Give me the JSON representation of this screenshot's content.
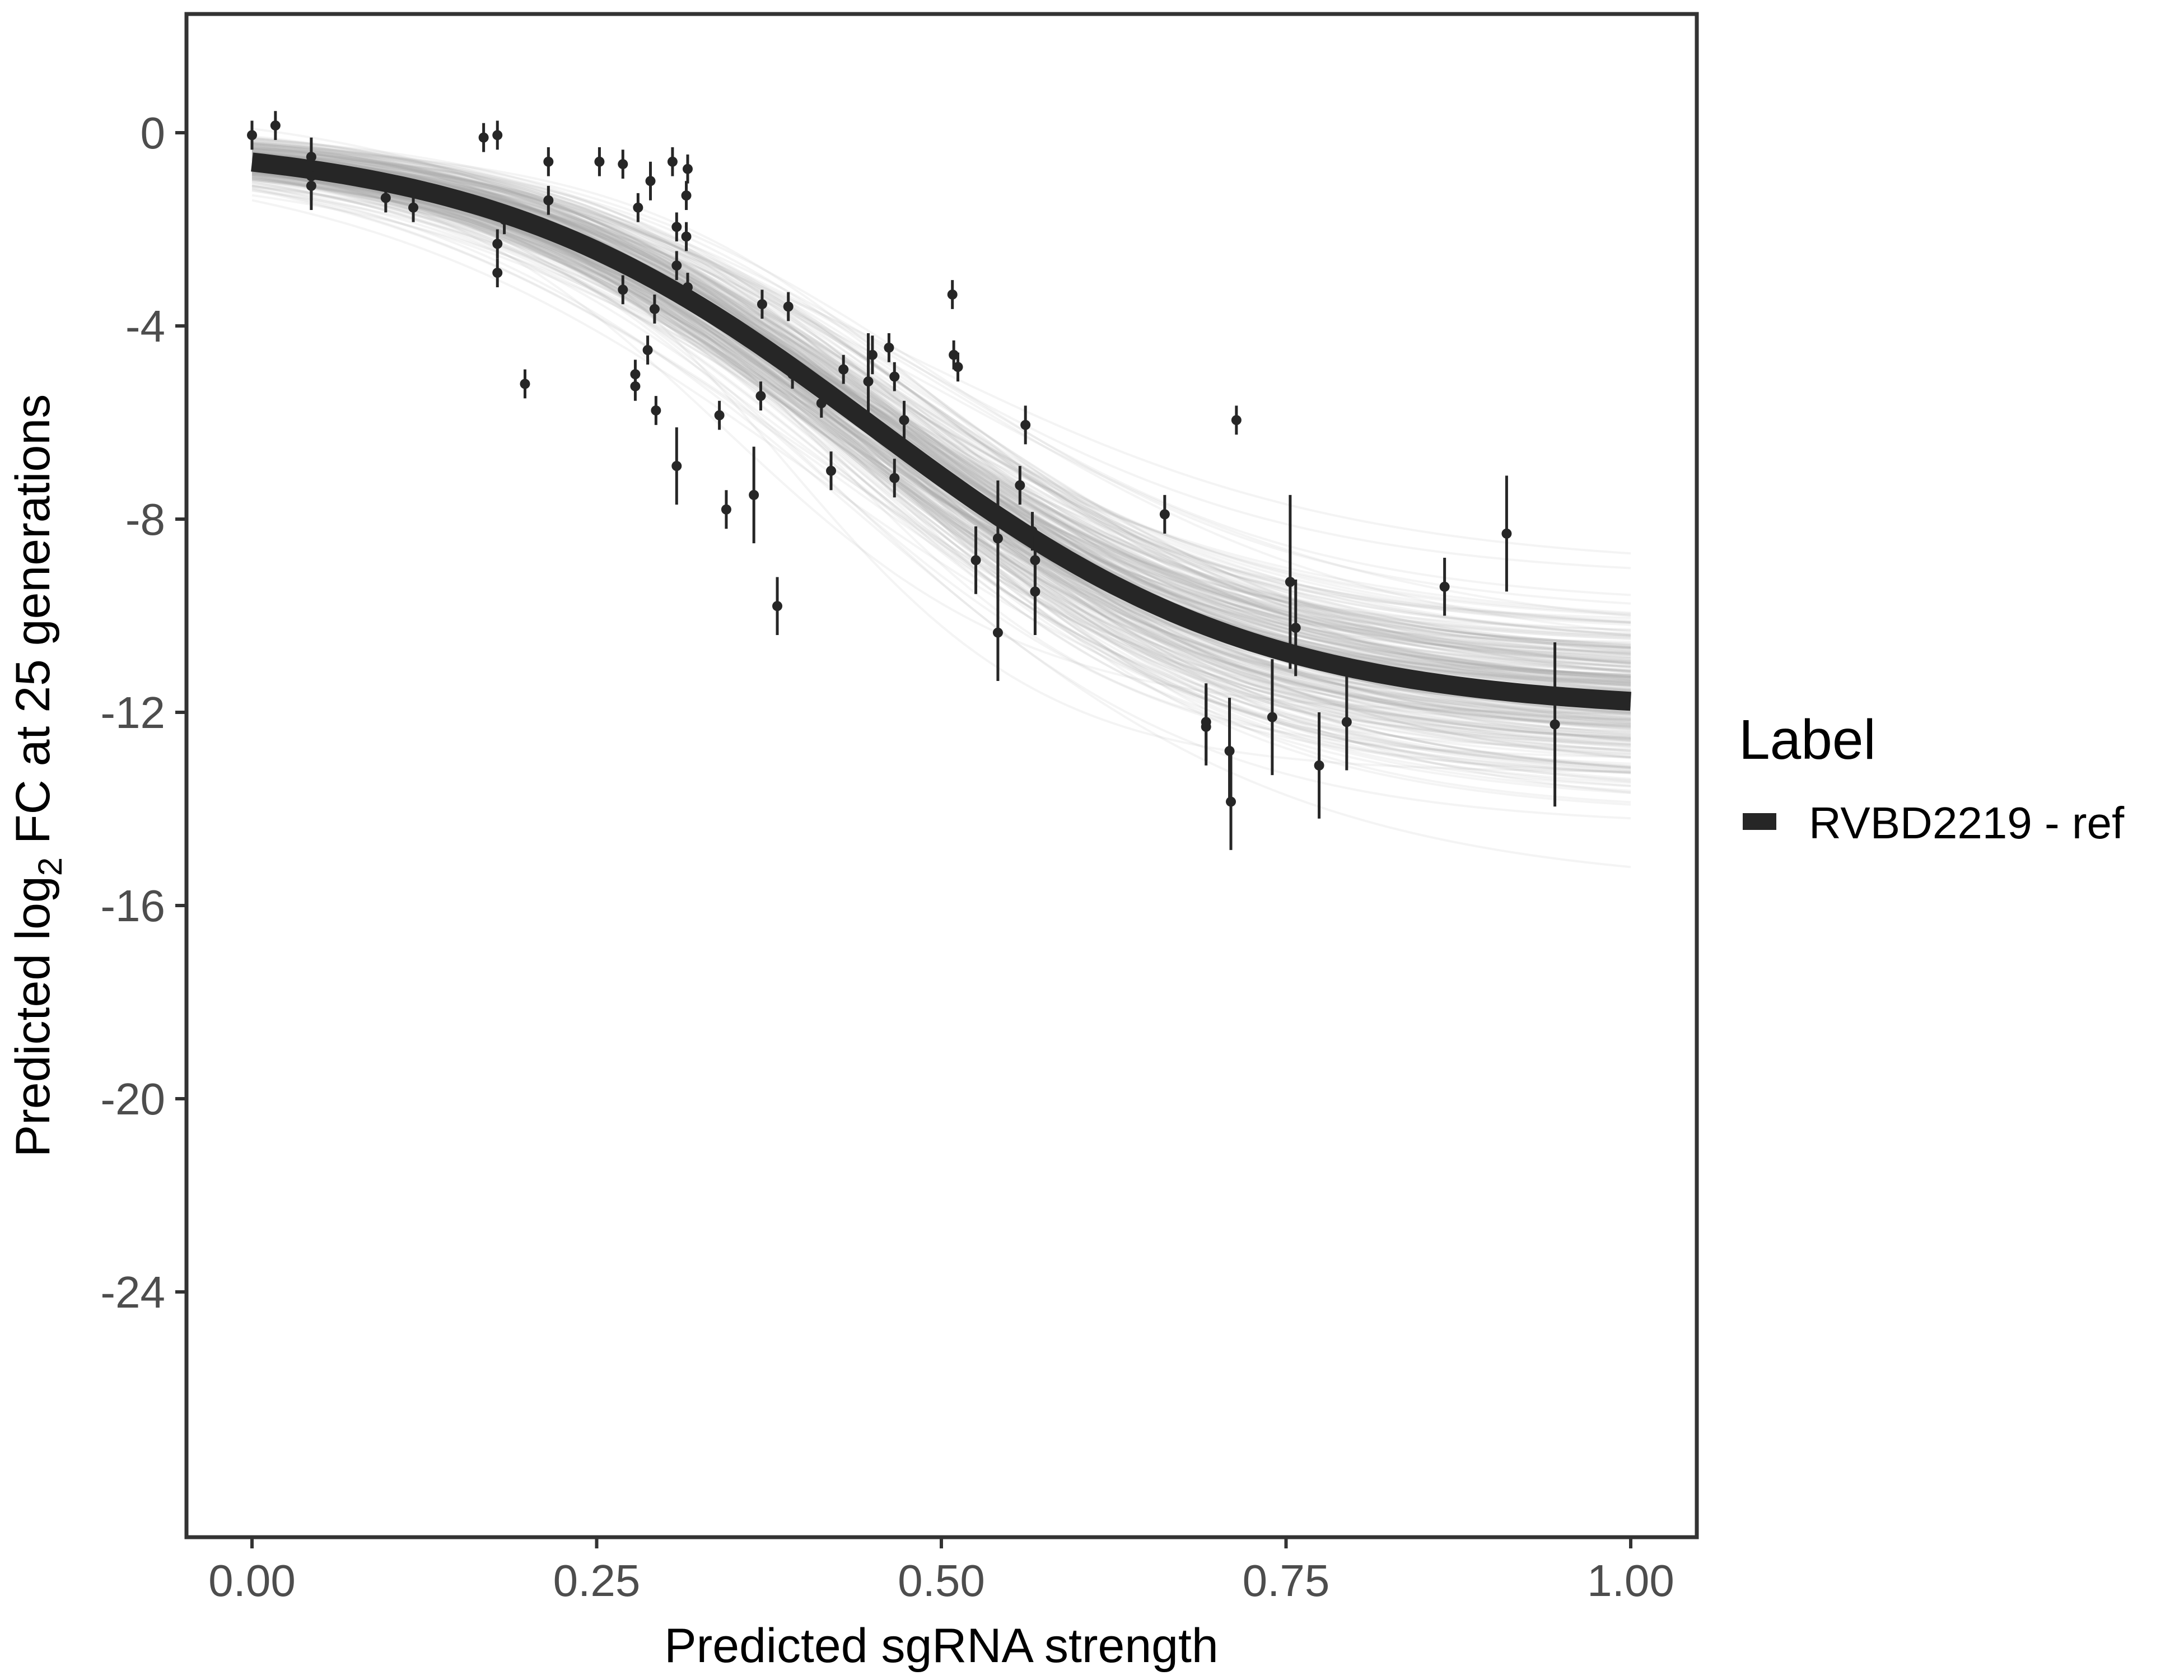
{
  "chart_data": {
    "type": "scatter",
    "title": "",
    "xlabel": "Predicted sgRNA strength",
    "ylabel_parts": {
      "pre": "Predicted  log",
      "sub": "2",
      "post": " FC at 25 generations"
    },
    "xlim": [
      -0.05,
      1.05
    ],
    "ylim": [
      -29.1,
      2.5
    ],
    "x_ticks": [
      {
        "value": 0,
        "label": "0.00"
      },
      {
        "value": 0.25,
        "label": "0.25"
      },
      {
        "value": 0.5,
        "label": "0.50"
      },
      {
        "value": 0.75,
        "label": "0.75"
      },
      {
        "value": 1,
        "label": "1.00"
      }
    ],
    "y_ticks": [
      {
        "value": 0,
        "label": "0"
      },
      {
        "value": -4,
        "label": "-4"
      },
      {
        "value": -8,
        "label": "-8"
      },
      {
        "value": -12,
        "label": "-12"
      },
      {
        "value": -16,
        "label": "-16"
      },
      {
        "value": -20,
        "label": "-20"
      },
      {
        "value": -24,
        "label": "-24"
      }
    ],
    "grid": false,
    "legend": {
      "title": "Label",
      "placement": "right",
      "items": [
        {
          "label": "RVBD2219 - ref",
          "color": "#262626"
        }
      ]
    },
    "fit_curve": {
      "name": "RVBD2219 - ref",
      "model": "logistic",
      "upper": -0.15,
      "lower": -12.0,
      "midpoint": 0.45,
      "scale": 0.14,
      "color": "#262626",
      "band_color": "#a6a6a6"
    },
    "points": [
      {
        "x": 0.0,
        "y": -0.05,
        "err": 0.3
      },
      {
        "x": 0.017,
        "y": 0.15,
        "err": 0.3
      },
      {
        "x": 0.043,
        "y": -0.5,
        "err": 0.4
      },
      {
        "x": 0.043,
        "y": -0.9,
        "err": 0.5
      },
      {
        "x": 0.043,
        "y": -1.1,
        "err": 0.5
      },
      {
        "x": 0.097,
        "y": -1.35,
        "err": 0.3
      },
      {
        "x": 0.117,
        "y": -1.55,
        "err": 0.3
      },
      {
        "x": 0.168,
        "y": -0.1,
        "err": 0.3
      },
      {
        "x": 0.178,
        "y": -0.05,
        "err": 0.3
      },
      {
        "x": 0.178,
        "y": -2.3,
        "err": 0.3
      },
      {
        "x": 0.178,
        "y": -2.9,
        "err": 0.3
      },
      {
        "x": 0.183,
        "y": -1.8,
        "err": 0.3
      },
      {
        "x": 0.198,
        "y": -5.2,
        "err": 0.3
      },
      {
        "x": 0.215,
        "y": -0.6,
        "err": 0.3
      },
      {
        "x": 0.215,
        "y": -1.4,
        "err": 0.3
      },
      {
        "x": 0.252,
        "y": -0.6,
        "err": 0.3
      },
      {
        "x": 0.269,
        "y": -0.65,
        "err": 0.3
      },
      {
        "x": 0.269,
        "y": -3.25,
        "err": 0.3
      },
      {
        "x": 0.278,
        "y": -5.0,
        "err": 0.3
      },
      {
        "x": 0.278,
        "y": -5.25,
        "err": 0.3
      },
      {
        "x": 0.28,
        "y": -1.55,
        "err": 0.3
      },
      {
        "x": 0.289,
        "y": -1.0,
        "err": 0.4
      },
      {
        "x": 0.292,
        "y": -3.65,
        "err": 0.3
      },
      {
        "x": 0.287,
        "y": -4.5,
        "err": 0.3
      },
      {
        "x": 0.293,
        "y": -5.75,
        "err": 0.3
      },
      {
        "x": 0.305,
        "y": -0.6,
        "err": 0.3
      },
      {
        "x": 0.308,
        "y": -1.95,
        "err": 0.3
      },
      {
        "x": 0.308,
        "y": -2.75,
        "err": 0.3
      },
      {
        "x": 0.308,
        "y": -6.9,
        "err": 0.8
      },
      {
        "x": 0.315,
        "y": -1.3,
        "err": 0.3
      },
      {
        "x": 0.315,
        "y": -2.15,
        "err": 0.3
      },
      {
        "x": 0.316,
        "y": -0.75,
        "err": 0.3
      },
      {
        "x": 0.316,
        "y": -3.2,
        "err": 0.3
      },
      {
        "x": 0.339,
        "y": -5.85,
        "err": 0.3
      },
      {
        "x": 0.344,
        "y": -7.8,
        "err": 0.4
      },
      {
        "x": 0.364,
        "y": -7.5,
        "err": 1.0
      },
      {
        "x": 0.369,
        "y": -5.45,
        "err": 0.3
      },
      {
        "x": 0.37,
        "y": -3.55,
        "err": 0.3
      },
      {
        "x": 0.381,
        "y": -9.8,
        "err": 0.6
      },
      {
        "x": 0.389,
        "y": -3.6,
        "err": 0.3
      },
      {
        "x": 0.392,
        "y": -5.0,
        "err": 0.3
      },
      {
        "x": 0.413,
        "y": -5.6,
        "err": 0.3
      },
      {
        "x": 0.42,
        "y": -7.0,
        "err": 0.4
      },
      {
        "x": 0.429,
        "y": -4.9,
        "err": 0.3
      },
      {
        "x": 0.447,
        "y": -5.15,
        "err": 1.0
      },
      {
        "x": 0.45,
        "y": -4.6,
        "err": 0.4
      },
      {
        "x": 0.462,
        "y": -4.45,
        "err": 0.3
      },
      {
        "x": 0.466,
        "y": -5.05,
        "err": 0.3
      },
      {
        "x": 0.466,
        "y": -7.15,
        "err": 0.4
      },
      {
        "x": 0.473,
        "y": -5.95,
        "err": 0.4
      },
      {
        "x": 0.508,
        "y": -3.35,
        "err": 0.3
      },
      {
        "x": 0.509,
        "y": -4.6,
        "err": 0.3
      },
      {
        "x": 0.512,
        "y": -4.85,
        "err": 0.3
      },
      {
        "x": 0.525,
        "y": -8.85,
        "err": 0.7
      },
      {
        "x": 0.541,
        "y": -8.4,
        "err": 1.2
      },
      {
        "x": 0.541,
        "y": -10.35,
        "err": 1.0
      },
      {
        "x": 0.557,
        "y": -7.3,
        "err": 0.4
      },
      {
        "x": 0.561,
        "y": -6.05,
        "err": 0.4
      },
      {
        "x": 0.566,
        "y": -8.25,
        "err": 0.4
      },
      {
        "x": 0.568,
        "y": -8.85,
        "err": 0.5
      },
      {
        "x": 0.568,
        "y": -9.5,
        "err": 0.9
      },
      {
        "x": 0.662,
        "y": -7.9,
        "err": 0.4
      },
      {
        "x": 0.692,
        "y": -12.2,
        "err": 0.8
      },
      {
        "x": 0.692,
        "y": -12.3,
        "err": 0.8
      },
      {
        "x": 0.709,
        "y": -12.8,
        "err": 1.1
      },
      {
        "x": 0.71,
        "y": -13.85,
        "err": 1.0
      },
      {
        "x": 0.714,
        "y": -5.95,
        "err": 0.3
      },
      {
        "x": 0.74,
        "y": -12.1,
        "err": 1.2
      },
      {
        "x": 0.753,
        "y": -9.3,
        "err": 1.8
      },
      {
        "x": 0.757,
        "y": -10.25,
        "err": 1.0
      },
      {
        "x": 0.774,
        "y": -13.1,
        "err": 1.1
      },
      {
        "x": 0.794,
        "y": -12.2,
        "err": 1.0
      },
      {
        "x": 0.865,
        "y": -9.4,
        "err": 0.6
      },
      {
        "x": 0.91,
        "y": -8.3,
        "err": 1.2
      },
      {
        "x": 0.945,
        "y": -12.25,
        "err": 1.7
      }
    ]
  }
}
